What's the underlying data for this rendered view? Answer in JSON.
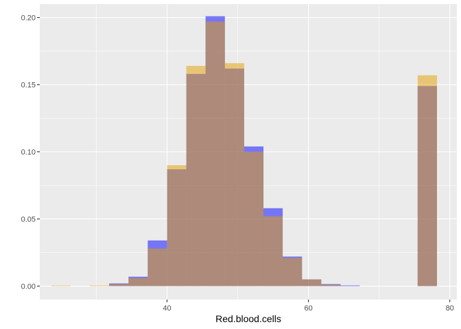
{
  "chart_data": {
    "type": "bar",
    "subtype": "overlapping-histogram",
    "title": "",
    "xlabel": "Red.blood.cells",
    "ylabel": "",
    "xlim": [
      22,
      81
    ],
    "ylim": [
      -0.01,
      0.21
    ],
    "x_ticks": [
      40,
      60,
      80
    ],
    "x_tick_labels": [
      "40",
      "60",
      "80"
    ],
    "y_ticks": [
      0.0,
      0.05,
      0.1,
      0.15,
      0.2
    ],
    "y_tick_labels": [
      "0.00",
      "0.05",
      "0.10",
      "0.15",
      "0.20"
    ],
    "grid": true,
    "legend": "none",
    "bin_width": 2.727,
    "series": [
      {
        "color": "#0000FF",
        "opacity": 0.5,
        "bins": [
          {
            "x0": 31.82,
            "x1": 34.55,
            "value": 0.002
          },
          {
            "x0": 34.55,
            "x1": 37.27,
            "value": 0.007
          },
          {
            "x0": 37.27,
            "x1": 40.0,
            "value": 0.034
          },
          {
            "x0": 40.0,
            "x1": 42.73,
            "value": 0.087
          },
          {
            "x0": 42.73,
            "x1": 45.45,
            "value": 0.158
          },
          {
            "x0": 45.45,
            "x1": 48.18,
            "value": 0.201
          },
          {
            "x0": 48.18,
            "x1": 50.91,
            "value": 0.162
          },
          {
            "x0": 50.91,
            "x1": 53.64,
            "value": 0.104
          },
          {
            "x0": 53.64,
            "x1": 56.36,
            "value": 0.058
          },
          {
            "x0": 56.36,
            "x1": 59.09,
            "value": 0.022
          },
          {
            "x0": 59.09,
            "x1": 61.82,
            "value": 0.005
          },
          {
            "x0": 61.82,
            "x1": 64.55,
            "value": 0.0015
          },
          {
            "x0": 64.55,
            "x1": 67.27,
            "value": 0.0005
          },
          {
            "x0": 75.45,
            "x1": 78.18,
            "value": 0.149
          }
        ]
      },
      {
        "color": "#E69F00",
        "opacity": 0.5,
        "bins": [
          {
            "x0": 23.64,
            "x1": 26.36,
            "value": 0.0005
          },
          {
            "x0": 29.09,
            "x1": 31.82,
            "value": 0.0005
          },
          {
            "x0": 31.82,
            "x1": 34.55,
            "value": 0.0015
          },
          {
            "x0": 34.55,
            "x1": 37.27,
            "value": 0.006
          },
          {
            "x0": 37.27,
            "x1": 40.0,
            "value": 0.028
          },
          {
            "x0": 40.0,
            "x1": 42.73,
            "value": 0.09
          },
          {
            "x0": 42.73,
            "x1": 45.45,
            "value": 0.164
          },
          {
            "x0": 45.45,
            "x1": 48.18,
            "value": 0.197
          },
          {
            "x0": 48.18,
            "x1": 50.91,
            "value": 0.166
          },
          {
            "x0": 50.91,
            "x1": 53.64,
            "value": 0.1
          },
          {
            "x0": 53.64,
            "x1": 56.36,
            "value": 0.052
          },
          {
            "x0": 56.36,
            "x1": 59.09,
            "value": 0.021
          },
          {
            "x0": 59.09,
            "x1": 61.82,
            "value": 0.005
          },
          {
            "x0": 61.82,
            "x1": 64.55,
            "value": 0.001
          },
          {
            "x0": 75.45,
            "x1": 78.18,
            "value": 0.157
          }
        ]
      }
    ]
  }
}
